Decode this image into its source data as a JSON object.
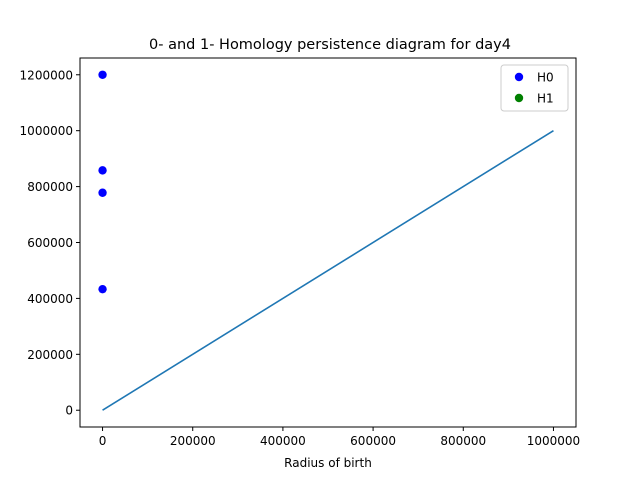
{
  "chart_data": {
    "type": "scatter",
    "title": "0- and 1- Homology persistence diagram for day4",
    "xlabel": "Radius of birth",
    "ylabel": "",
    "xlim": [
      -50000,
      1050000
    ],
    "ylim": [
      -60000,
      1260000
    ],
    "xticks": [
      0,
      200000,
      400000,
      600000,
      800000,
      1000000
    ],
    "yticks": [
      0,
      200000,
      400000,
      600000,
      800000,
      1000000,
      1200000
    ],
    "grid": false,
    "legend_position": "top-right",
    "series": [
      {
        "name": "H0",
        "kind": "scatter",
        "color": "#0000ff",
        "points": [
          {
            "x": 0,
            "y": 1200000
          },
          {
            "x": 0,
            "y": 858000
          },
          {
            "x": 0,
            "y": 778000
          },
          {
            "x": 0,
            "y": 433000
          }
        ]
      },
      {
        "name": "H1",
        "kind": "scatter",
        "color": "#008000",
        "points": []
      }
    ],
    "reference_line": {
      "color": "#1f77b4",
      "points": [
        {
          "x": 0,
          "y": 0
        },
        {
          "x": 1000000,
          "y": 1000000
        }
      ]
    }
  }
}
